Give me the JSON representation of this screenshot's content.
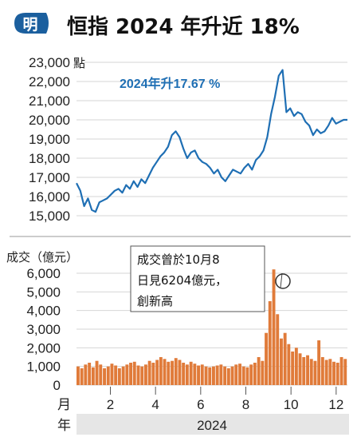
{
  "header": {
    "logo_char": "明",
    "title": "恒指 2024 年升近 18%"
  },
  "colors": {
    "logo_blue": "#1b5f9e",
    "line_blue": "#1f6fb4",
    "bar_orange": "#e07b3a",
    "grid": "#d6d6d6",
    "axis_band": "#e6e6e6"
  },
  "chart_data": [
    {
      "type": "line",
      "ylabel": "點",
      "ylim": [
        15000,
        23000
      ],
      "yticks": [
        "23,000",
        "22,000",
        "21,000",
        "20,000",
        "19,000",
        "18,000",
        "17,000",
        "16,000",
        "15,000"
      ],
      "annotation": "2024年升17.67 %",
      "series": [
        {
          "values": [
            16700,
            16300,
            15500,
            15900,
            15300,
            15200,
            15700,
            15800,
            15900,
            16100,
            16300,
            16400,
            16200,
            16600,
            16400,
            16800,
            16500,
            16900,
            16700,
            17100,
            17500,
            17800,
            18100,
            18300,
            18600,
            19200,
            19400,
            19100,
            18500,
            18000,
            18300,
            18400,
            18000,
            17800,
            17700,
            17500,
            17200,
            17400,
            17000,
            16800,
            17100,
            17400,
            17300,
            17200,
            17500,
            17700,
            17400,
            17900,
            18100,
            18400,
            19100,
            20300,
            21200,
            22300,
            22600,
            20400,
            20600,
            20200,
            20400,
            20300,
            19900,
            19700,
            19200,
            19500,
            19300,
            19400,
            19700,
            20100,
            19800,
            19900,
            20000,
            20000
          ]
        }
      ]
    },
    {
      "type": "bar",
      "ylabel": "成交（億元）",
      "ylim": [
        0,
        6000
      ],
      "yticks": [
        "6,000",
        "5,000",
        "4,000",
        "3,000",
        "2,000",
        "1,000",
        "0"
      ],
      "x_label_month": "月",
      "x_label_year": "年",
      "months": [
        "2",
        "4",
        "6",
        "8",
        "10",
        "12"
      ],
      "year": "2024",
      "callout": {
        "lines": [
          "成交曾於10月8",
          "日見6204億元，",
          "創新高"
        ],
        "peak_value": 6204
      },
      "values": [
        1000,
        900,
        1100,
        1200,
        950,
        1300,
        1100,
        900,
        1000,
        1150,
        1050,
        900,
        1000,
        1100,
        1200,
        1250,
        1050,
        1000,
        1100,
        1300,
        1200,
        1350,
        1500,
        1400,
        1250,
        1300,
        1450,
        1350,
        1200,
        1100,
        1250,
        1150,
        1050,
        1100,
        1000,
        950,
        1000,
        1050,
        1100,
        1000,
        900,
        1000,
        1100,
        1150,
        1000,
        950,
        1100,
        1200,
        1500,
        1300,
        2800,
        4500,
        6204,
        3800,
        2500,
        2800,
        2200,
        1800,
        2000,
        1700,
        1500,
        1600,
        1400,
        1300,
        2400,
        1500,
        1350,
        1400,
        1250,
        1200,
        1500,
        1400
      ]
    }
  ]
}
